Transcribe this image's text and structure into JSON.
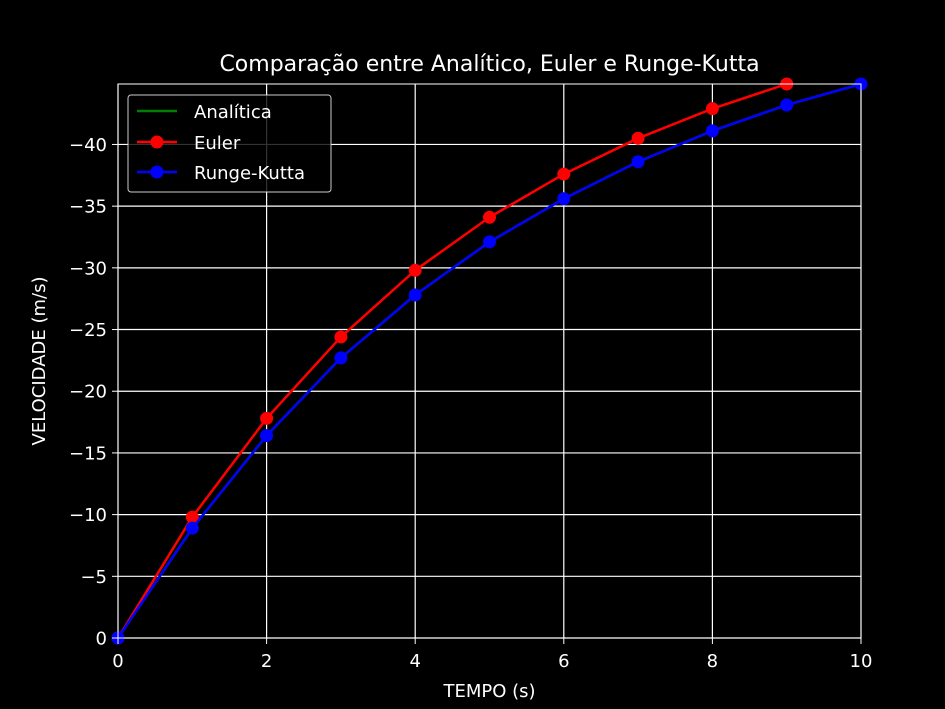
{
  "chart_data": {
    "type": "line",
    "title": "Comparação entre Analítico, Euler e Runge-Kutta",
    "xlabel": "TEMPO (s)",
    "ylabel": "VELOCIDADE (m/s)",
    "xlim": [
      0,
      10
    ],
    "ylim": [
      0,
      -44.9
    ],
    "y_inverted": true,
    "xticks": [
      0,
      2,
      4,
      6,
      8,
      10
    ],
    "xtick_labels": [
      "0",
      "2",
      "4",
      "6",
      "8",
      "10"
    ],
    "yticks": [
      0,
      -5,
      -10,
      -15,
      -20,
      -25,
      -30,
      -35,
      -40
    ],
    "ytick_labels": [
      "0",
      "−5",
      "−10",
      "−15",
      "−20",
      "−25",
      "−30",
      "−35",
      "−40"
    ],
    "grid": true,
    "legend_position": "top-left",
    "series": [
      {
        "name": "Analítica",
        "color": "#008000",
        "marker": false,
        "x": [
          0,
          1,
          2,
          3,
          4,
          5,
          6,
          7,
          8,
          9,
          10
        ],
        "values": [
          0,
          -8.9,
          -16.4,
          -22.7,
          -27.8,
          -32.1,
          -35.6,
          -38.6,
          -41.1,
          -43.2,
          -44.9
        ]
      },
      {
        "name": "Euler",
        "color": "#ff0000",
        "marker": true,
        "x": [
          0,
          1,
          2,
          3,
          4,
          5,
          6,
          7,
          8,
          9
        ],
        "values": [
          0,
          -9.8,
          -17.8,
          -24.4,
          -29.8,
          -34.1,
          -37.6,
          -40.5,
          -42.9,
          -44.9
        ]
      },
      {
        "name": "Runge-Kutta",
        "color": "#0000ff",
        "marker": true,
        "x": [
          0,
          1,
          2,
          3,
          4,
          5,
          6,
          7,
          8,
          9,
          10
        ],
        "values": [
          0,
          -8.9,
          -16.4,
          -22.7,
          -27.8,
          -32.1,
          -35.6,
          -38.6,
          -41.1,
          -43.2,
          -44.9
        ]
      }
    ]
  }
}
